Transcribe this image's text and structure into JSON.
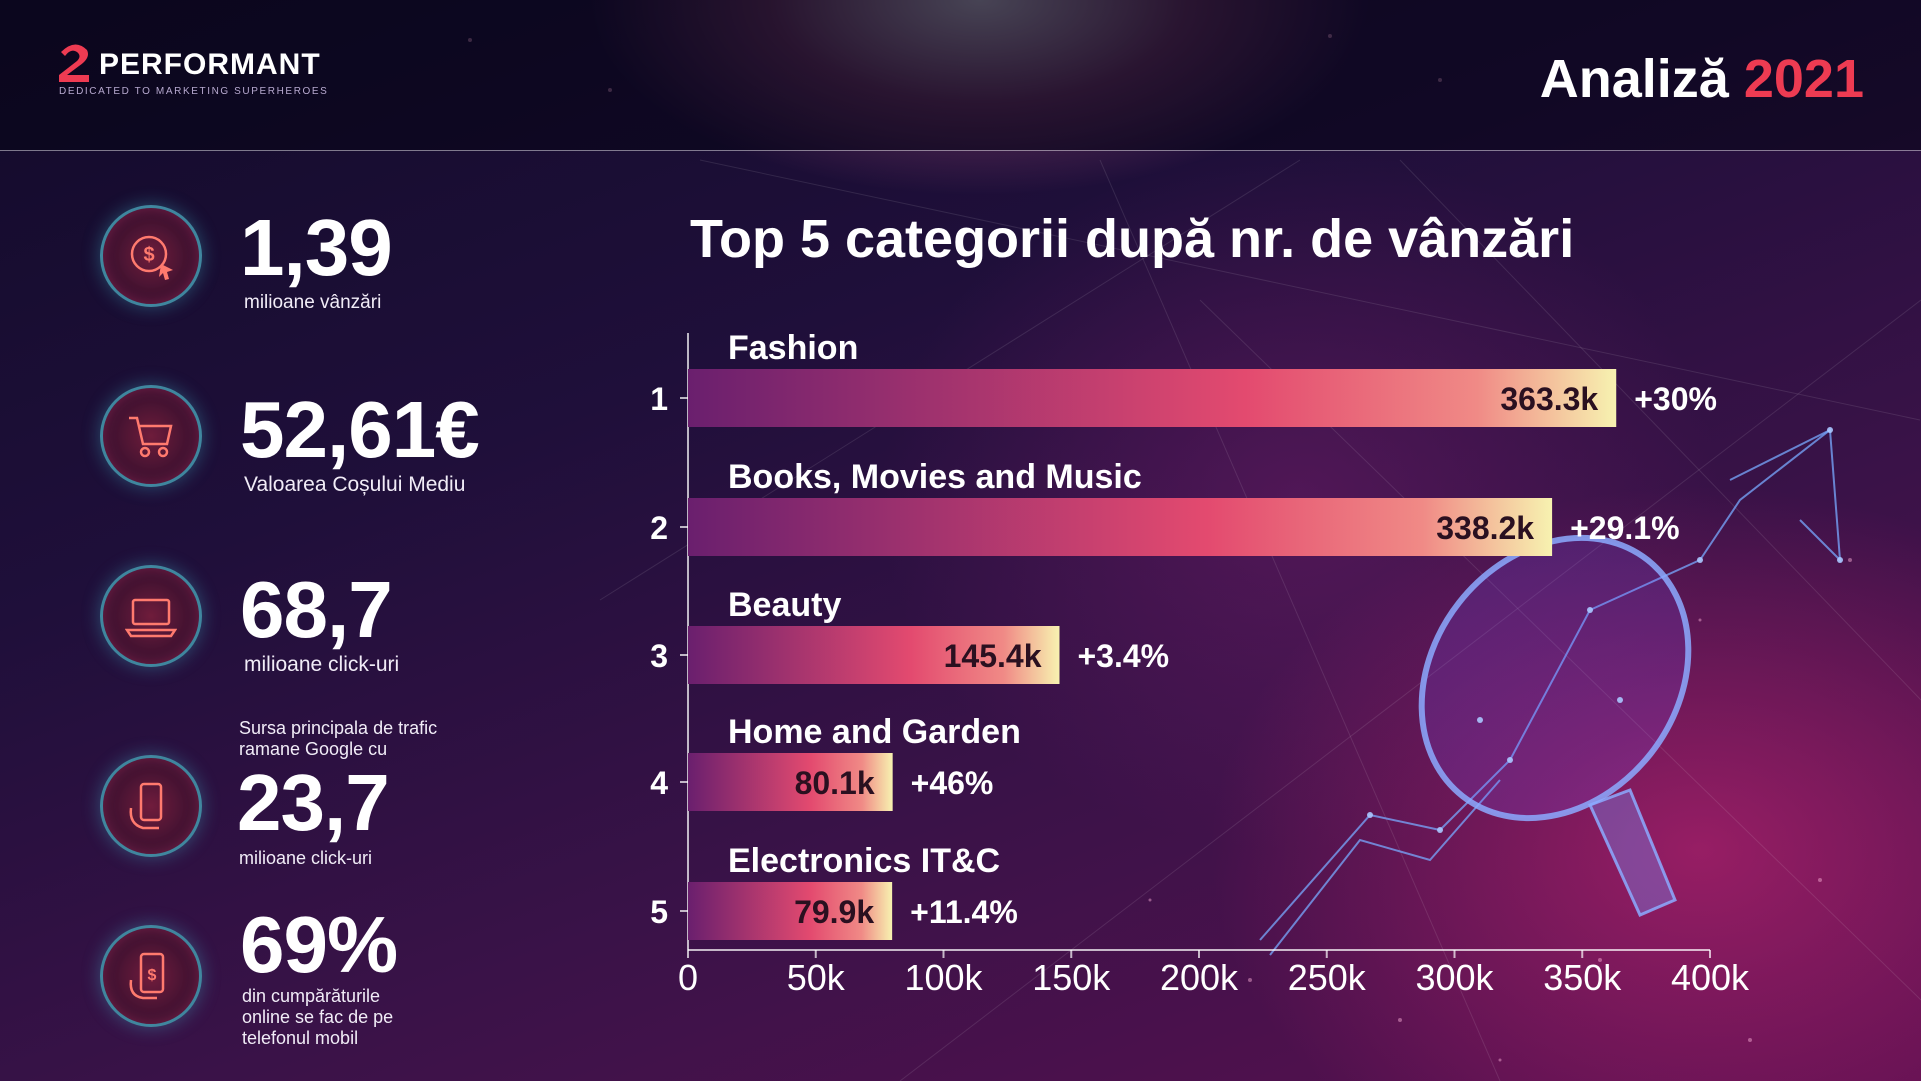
{
  "header": {
    "logo_text": "PERFORMANT",
    "logo_tagline": "DEDICATED TO MARKETING SUPERHEROES",
    "title_word": "Analiză",
    "title_year": "2021",
    "colors": {
      "accent": "#ee3b52"
    }
  },
  "stats": [
    {
      "icon": "dollar-cursor-icon",
      "value": "1,39",
      "label": "milioane vânzări"
    },
    {
      "icon": "shopping-cart-icon",
      "value": "52,61€",
      "label": "Valoarea Coșului Mediu"
    },
    {
      "icon": "laptop-icon",
      "value": "68,7",
      "label": "milioane click-uri"
    },
    {
      "icon": "phone-hand-icon",
      "value": "23,7",
      "label": "milioane click-uri",
      "prefix_line1": "Sursa principala de trafic",
      "prefix_line2": "ramane Google cu"
    },
    {
      "icon": "mobile-payment-icon",
      "value": "69%",
      "label_line1": "din cumpărăturile",
      "label_line2": "online se fac de pe",
      "label_line3": "telefonul mobil"
    }
  ],
  "chart_data": {
    "type": "bar",
    "orientation": "horizontal",
    "title": "Top 5 categorii după nr. de vânzări",
    "categories": [
      "Fashion",
      "Books, Movies and Music",
      "Beauty",
      "Home and Garden",
      "Electronics IT&C"
    ],
    "ranks": [
      "1",
      "2",
      "3",
      "4",
      "5"
    ],
    "values": [
      363.3,
      338.2,
      145.4,
      80.1,
      79.9
    ],
    "value_labels": [
      "363.3k",
      "338.2k",
      "145.4k",
      "80.1k",
      "79.9k"
    ],
    "change_labels": [
      "+30%",
      "+29.1%",
      "+3.4%",
      "+46%",
      "+11.4%"
    ],
    "x_ticks": [
      "0",
      "50k",
      "100k",
      "150k",
      "200k",
      "250k",
      "300k",
      "350k",
      "400k"
    ],
    "x_tick_values": [
      0,
      50,
      100,
      150,
      200,
      250,
      300,
      350,
      400
    ],
    "xlim": [
      0,
      400
    ],
    "grid": false,
    "colors": {
      "bar_start": "#6a1f6e",
      "bar_mid": "#e34a6f",
      "bar_end": "#f7f2b0"
    }
  }
}
